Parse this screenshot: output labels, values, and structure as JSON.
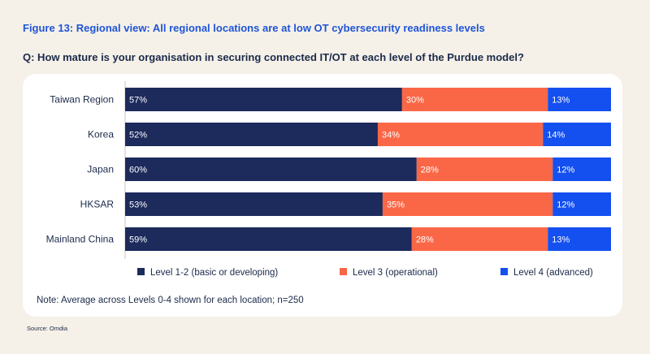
{
  "figure_title": "Figure 13: Regional view: All regional locations are at low OT cybersecurity readiness levels",
  "question": "Q: How mature is your organisation in securing connected IT/OT at each level of the Purdue model?",
  "note": "Note: Average across Levels 0-4 shown for each location; n=250",
  "source": "Source: Omdia",
  "chart_data": {
    "type": "bar",
    "orientation": "horizontal",
    "stacked": true,
    "categories": [
      "Taiwan Region",
      "Korea",
      "Japan",
      "HKSAR",
      "Mainland China"
    ],
    "series": [
      {
        "name": "Level 1-2 (basic or developing)",
        "values": [
          57,
          52,
          60,
          53,
          59
        ],
        "labels": [
          "57%",
          "52%",
          "60%",
          "53%",
          "59%"
        ],
        "color": "#1c2a5c"
      },
      {
        "name": "Level 3 (operational)",
        "values": [
          30,
          34,
          28,
          35,
          28
        ],
        "labels": [
          "30%",
          "34%",
          "28%",
          "35%",
          "28%"
        ],
        "color": "#fa6746"
      },
      {
        "name": "Level 4 (advanced)",
        "values": [
          13,
          14,
          12,
          12,
          13
        ],
        "labels": [
          "13%",
          "14%",
          "12%",
          "12%",
          "13%"
        ],
        "color": "#1450f0"
      }
    ],
    "xlim": [
      0,
      100
    ],
    "grid": false,
    "legend": "bottom"
  }
}
